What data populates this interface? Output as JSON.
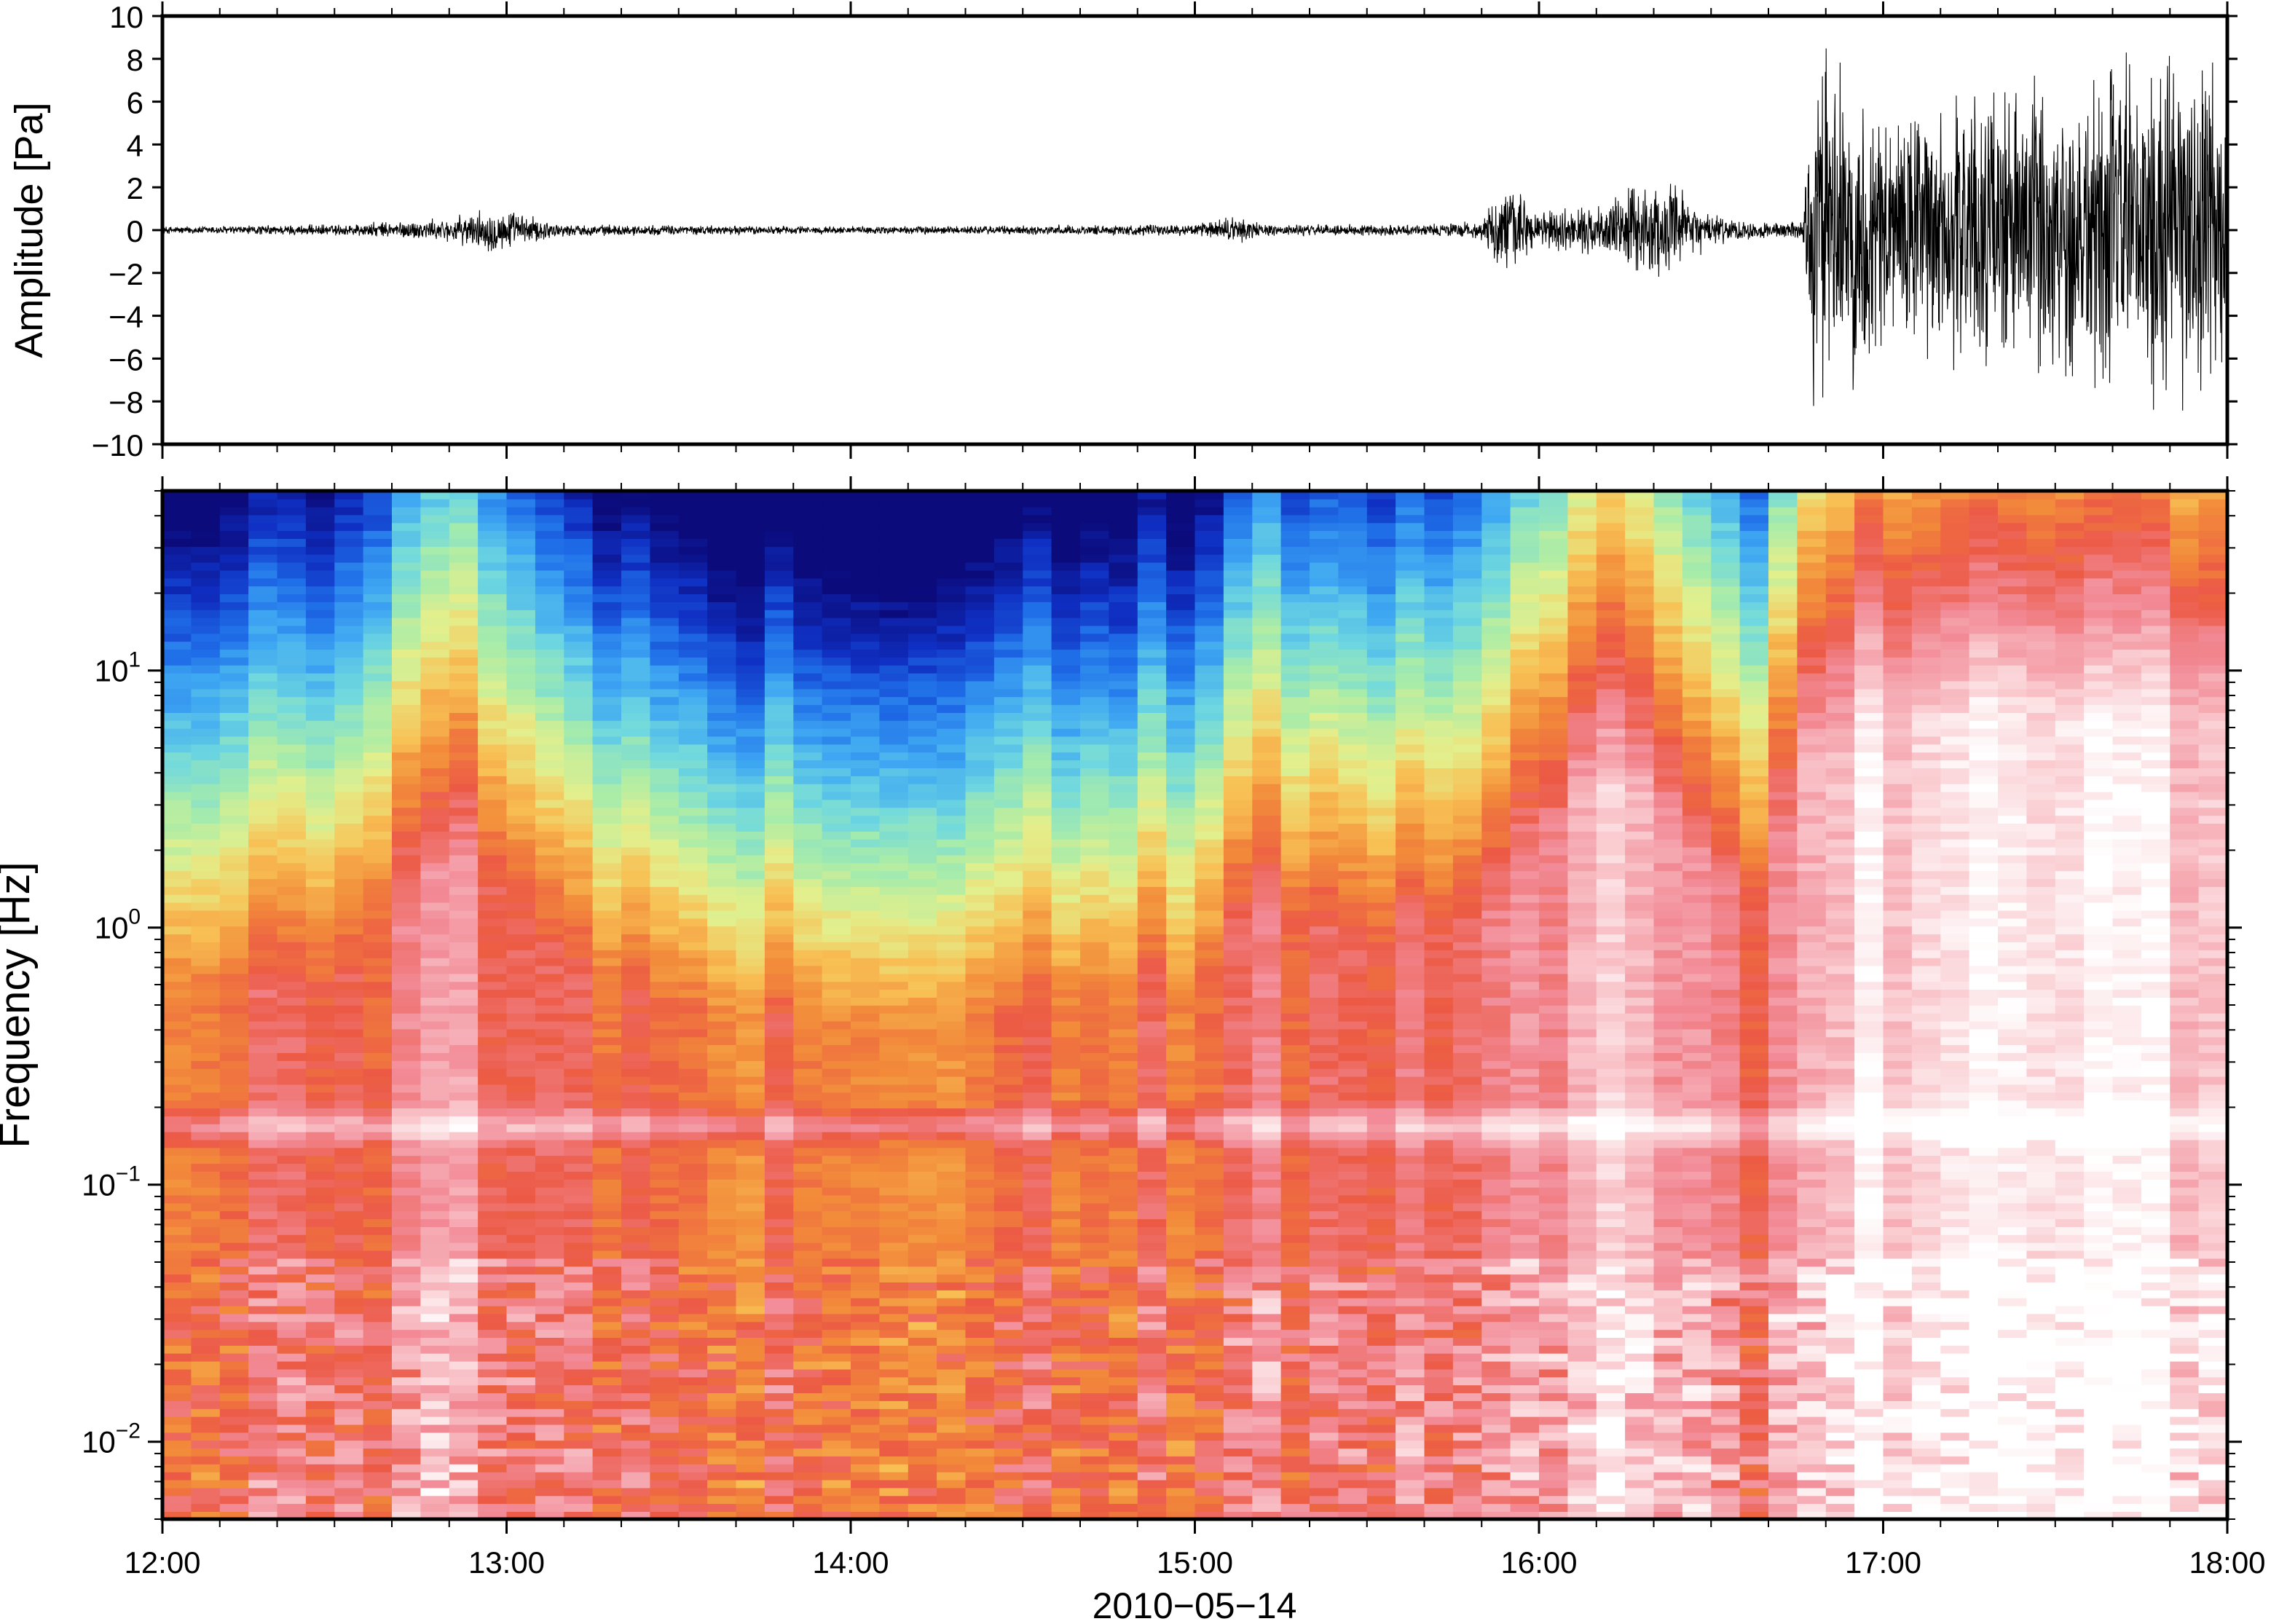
{
  "chart_data": [
    {
      "type": "line",
      "title": "",
      "xlabel": "",
      "ylabel": "Amplitude [Pa]",
      "xlim": [
        "12:00",
        "18:00"
      ],
      "ylim": [
        -10,
        10
      ],
      "yticks": [
        -10,
        -8,
        -6,
        -4,
        -2,
        0,
        2,
        4,
        6,
        8,
        10
      ],
      "ytick_labels": [
        "−10",
        "−8",
        "−6",
        "−4",
        "−2",
        "0",
        "2",
        "4",
        "6",
        "8",
        "10"
      ],
      "grid": false,
      "series_color": "#000000",
      "envelope": {
        "x": [
          "12:00",
          "12:30",
          "12:50",
          "12:58",
          "13:10",
          "14:00",
          "15:00",
          "15:08",
          "15:12",
          "15:40",
          "15:50",
          "15:54",
          "16:00",
          "16:10",
          "16:18",
          "16:24",
          "16:30",
          "16:40",
          "16:46",
          "16:48",
          "17:00",
          "17:20",
          "17:40",
          "18:00"
        ],
        "amplitude": [
          0.2,
          0.3,
          0.6,
          1.2,
          0.3,
          0.2,
          0.3,
          0.8,
          0.3,
          0.3,
          0.5,
          2.5,
          1.0,
          1.2,
          2.6,
          2.2,
          0.8,
          0.4,
          0.5,
          9.5,
          6.5,
          7.5,
          9.0,
          9.5
        ]
      }
    },
    {
      "type": "heatmap",
      "title": "",
      "xlabel": "2010−05−14",
      "ylabel": "Frequency [Hz]",
      "xlim": [
        "12:00",
        "18:00"
      ],
      "ylim": [
        0.005,
        50
      ],
      "yscale": "log",
      "ytick_labels": [
        {
          "value": 0.01,
          "base": "10",
          "exp": "−2"
        },
        {
          "value": 0.1,
          "base": "10",
          "exp": "−1"
        },
        {
          "value": 1,
          "base": "10",
          "exp": "0"
        },
        {
          "value": 10,
          "base": "10",
          "exp": "1"
        }
      ],
      "xticks": [
        "12:00",
        "13:00",
        "14:00",
        "15:00",
        "16:00",
        "17:00",
        "18:00"
      ],
      "colormap": [
        "#0b0b7c",
        "#0f2fc2",
        "#1f6ee8",
        "#3fa8f2",
        "#6fd8df",
        "#a8eca9",
        "#e3ef8c",
        "#f8c054",
        "#f28a3a",
        "#ec5a45",
        "#f28a96",
        "#f9c7cc",
        "#ffffff"
      ],
      "microbarom_band_hz": 0.17,
      "intensity_profile": {
        "time": [
          "12:00",
          "12:30",
          "12:40",
          "12:55",
          "13:10",
          "13:30",
          "14:00",
          "14:30",
          "15:00",
          "15:10",
          "15:30",
          "15:50",
          "16:00",
          "16:10",
          "16:20",
          "16:30",
          "16:40",
          "16:45",
          "17:00",
          "17:30",
          "18:00"
        ],
        "level": [
          0.35,
          0.35,
          0.55,
          0.65,
          0.4,
          0.3,
          0.25,
          0.3,
          0.35,
          0.55,
          0.45,
          0.5,
          0.7,
          0.85,
          0.8,
          0.6,
          0.55,
          0.9,
          1.0,
          1.0,
          1.0
        ]
      }
    }
  ]
}
